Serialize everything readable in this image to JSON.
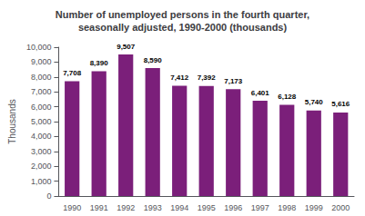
{
  "chart_data": {
    "type": "bar",
    "title": "Number of unemployed persons in the fourth quarter,\nseasonally adjusted, 1990-2000 (thousands)",
    "categories": [
      "1990",
      "1991",
      "1992",
      "1993",
      "1994",
      "1995",
      "1996",
      "1997",
      "1998",
      "1999",
      "2000"
    ],
    "values": [
      7708,
      8390,
      9507,
      8590,
      7412,
      7392,
      7173,
      6401,
      6128,
      5740,
      5616
    ],
    "value_labels": [
      "7,708",
      "8,390",
      "9,507",
      "8,590",
      "7,412",
      "7,392",
      "7,173",
      "6,401",
      "6,128",
      "5,740",
      "5,616"
    ],
    "data_labels": true,
    "color": "#7B1F7A",
    "ylabel": "Thousands",
    "ylim": [
      0,
      10000
    ],
    "yticks": [
      0,
      {
        "value": 1000,
        "label": "1,000"
      },
      {
        "value": 2000,
        "label": "2,000"
      },
      {
        "value": 3000,
        "label": "3,000"
      },
      {
        "value": 4000,
        "label": "4,000"
      },
      {
        "value": 5000,
        "label": "5,000"
      },
      {
        "value": 6000,
        "label": "6,000"
      },
      {
        "value": 7000,
        "label": "7,000"
      },
      {
        "value": 8000,
        "label": "8,000"
      },
      {
        "value": 9000,
        "label": "9,000"
      },
      {
        "value": 10000,
        "label": "10,000"
      }
    ],
    "grid": false
  }
}
